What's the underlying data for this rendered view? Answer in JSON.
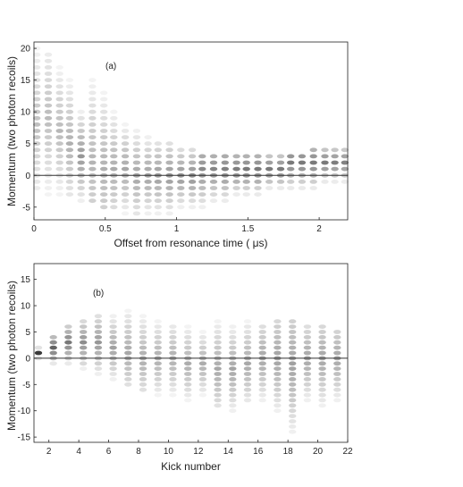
{
  "figure": {
    "colors": {
      "frame": "#222222",
      "zero_line": "#333333",
      "spot": "#2f2f2f",
      "background": "#ffffff"
    }
  },
  "chart_data": [
    {
      "type": "heatmap",
      "panel_label": "(a)",
      "xlabel": "Offset from resonance time ( μs)",
      "ylabel": "Momentum (two photon recoils)",
      "xlim": [
        0,
        2.2
      ],
      "ylim": [
        -7,
        21
      ],
      "xticks": [
        0,
        0.5,
        1,
        1.5,
        2
      ],
      "xtick_labels": [
        "0",
        "0.5",
        "1",
        "1.5",
        "2"
      ],
      "yticks": [
        -5,
        0,
        5,
        10,
        15,
        20
      ],
      "ytick_labels": [
        "-5",
        "0",
        "5",
        "10",
        "15",
        "20"
      ],
      "zero_line": 0,
      "columns": [
        {
          "x": 0.02,
          "ymin": -2,
          "ymax": 20,
          "peak": 8,
          "intensity": 0.3
        },
        {
          "x": 0.1,
          "ymin": -3,
          "ymax": 19,
          "peak": 9,
          "intensity": 0.32
        },
        {
          "x": 0.18,
          "ymin": -3,
          "ymax": 17,
          "peak": 7,
          "intensity": 0.34
        },
        {
          "x": 0.25,
          "ymin": -3,
          "ymax": 15,
          "peak": 5,
          "intensity": 0.38
        },
        {
          "x": 0.33,
          "ymin": -4,
          "ymax": 10,
          "peak": 3,
          "intensity": 0.5
        },
        {
          "x": 0.41,
          "ymin": -4,
          "ymax": 15,
          "peak": 2,
          "intensity": 0.36
        },
        {
          "x": 0.49,
          "ymin": -5,
          "ymax": 13,
          "peak": 1,
          "intensity": 0.38
        },
        {
          "x": 0.56,
          "ymin": -5,
          "ymax": 10,
          "peak": 1,
          "intensity": 0.4
        },
        {
          "x": 0.64,
          "ymin": -6,
          "ymax": 8,
          "peak": 1,
          "intensity": 0.42
        },
        {
          "x": 0.72,
          "ymin": -6,
          "ymax": 7,
          "peak": 0,
          "intensity": 0.44
        },
        {
          "x": 0.8,
          "ymin": -6,
          "ymax": 6,
          "peak": 0,
          "intensity": 0.46
        },
        {
          "x": 0.87,
          "ymin": -6,
          "ymax": 5,
          "peak": 0,
          "intensity": 0.48
        },
        {
          "x": 0.95,
          "ymin": -6,
          "ymax": 5,
          "peak": 0,
          "intensity": 0.5
        },
        {
          "x": 1.03,
          "ymin": -5,
          "ymax": 4,
          "peak": 0,
          "intensity": 0.52
        },
        {
          "x": 1.11,
          "ymin": -5,
          "ymax": 4,
          "peak": 0,
          "intensity": 0.54
        },
        {
          "x": 1.18,
          "ymin": -5,
          "ymax": 3,
          "peak": 1,
          "intensity": 0.56
        },
        {
          "x": 1.26,
          "ymin": -4,
          "ymax": 3,
          "peak": 1,
          "intensity": 0.58
        },
        {
          "x": 1.34,
          "ymin": -4,
          "ymax": 3,
          "peak": 1,
          "intensity": 0.6
        },
        {
          "x": 1.42,
          "ymin": -3,
          "ymax": 3,
          "peak": 1,
          "intensity": 0.62
        },
        {
          "x": 1.49,
          "ymin": -3,
          "ymax": 3,
          "peak": 1,
          "intensity": 0.64
        },
        {
          "x": 1.57,
          "ymin": -3,
          "ymax": 3,
          "peak": 1,
          "intensity": 0.64
        },
        {
          "x": 1.65,
          "ymin": -2,
          "ymax": 3,
          "peak": 1,
          "intensity": 0.64
        },
        {
          "x": 1.73,
          "ymin": -2,
          "ymax": 3,
          "peak": 1,
          "intensity": 0.64
        },
        {
          "x": 1.8,
          "ymin": -2,
          "ymax": 3,
          "peak": 2,
          "intensity": 0.64
        },
        {
          "x": 1.88,
          "ymin": -2,
          "ymax": 3,
          "peak": 2,
          "intensity": 0.64
        },
        {
          "x": 1.96,
          "ymin": -2,
          "ymax": 4,
          "peak": 2,
          "intensity": 0.64
        },
        {
          "x": 2.04,
          "ymin": -1,
          "ymax": 4,
          "peak": 2,
          "intensity": 0.64
        },
        {
          "x": 2.11,
          "ymin": -1,
          "ymax": 4,
          "peak": 2,
          "intensity": 0.62
        },
        {
          "x": 2.18,
          "ymin": -1,
          "ymax": 4,
          "peak": 2,
          "intensity": 0.6
        }
      ]
    },
    {
      "type": "heatmap",
      "panel_label": "(b)",
      "xlabel": "Kick number",
      "ylabel": "Momentum (two photon recoils)",
      "xlim": [
        1,
        22
      ],
      "ylim": [
        -16,
        18
      ],
      "xticks": [
        2,
        4,
        6,
        8,
        10,
        12,
        14,
        16,
        18,
        20,
        22
      ],
      "xtick_labels": [
        "2",
        "4",
        "6",
        "8",
        "10",
        "12",
        "14",
        "16",
        "18",
        "20",
        "22"
      ],
      "yticks": [
        -15,
        -10,
        -5,
        0,
        5,
        10,
        15
      ],
      "ytick_labels": [
        "-15",
        "-10",
        "-5",
        "0",
        "5",
        "10",
        "15"
      ],
      "zero_line": 0,
      "columns": [
        {
          "x": 1.3,
          "ymin": 0,
          "ymax": 2,
          "peak": 1,
          "intensity": 0.95
        },
        {
          "x": 2.3,
          "ymin": -1,
          "ymax": 4,
          "peak": 2,
          "intensity": 0.75
        },
        {
          "x": 3.3,
          "ymin": -1,
          "ymax": 6,
          "peak": 3,
          "intensity": 0.65
        },
        {
          "x": 4.3,
          "ymin": -2,
          "ymax": 7,
          "peak": 3,
          "intensity": 0.55
        },
        {
          "x": 5.3,
          "ymin": -3,
          "ymax": 8,
          "peak": 3,
          "intensity": 0.5
        },
        {
          "x": 6.3,
          "ymin": -4,
          "ymax": 8,
          "peak": 2,
          "intensity": 0.45
        },
        {
          "x": 7.3,
          "ymin": -5,
          "ymax": 9,
          "peak": 1,
          "intensity": 0.42
        },
        {
          "x": 8.3,
          "ymin": -6,
          "ymax": 8,
          "peak": 0,
          "intensity": 0.4
        },
        {
          "x": 9.3,
          "ymin": -7,
          "ymax": 7,
          "peak": 0,
          "intensity": 0.4
        },
        {
          "x": 10.3,
          "ymin": -7,
          "ymax": 6,
          "peak": 0,
          "intensity": 0.4
        },
        {
          "x": 11.3,
          "ymin": -8,
          "ymax": 6,
          "peak": -1,
          "intensity": 0.4
        },
        {
          "x": 12.3,
          "ymin": -7,
          "ymax": 5,
          "peak": -1,
          "intensity": 0.4
        },
        {
          "x": 13.3,
          "ymin": -9,
          "ymax": 7,
          "peak": -2,
          "intensity": 0.42
        },
        {
          "x": 14.3,
          "ymin": -10,
          "ymax": 6,
          "peak": -2,
          "intensity": 0.44
        },
        {
          "x": 15.3,
          "ymin": -8,
          "ymax": 7,
          "peak": -1,
          "intensity": 0.42
        },
        {
          "x": 16.3,
          "ymin": -8,
          "ymax": 6,
          "peak": 0,
          "intensity": 0.44
        },
        {
          "x": 17.3,
          "ymin": -10,
          "ymax": 7,
          "peak": 0,
          "intensity": 0.46
        },
        {
          "x": 18.3,
          "ymin": -14,
          "ymax": 7,
          "peak": -1,
          "intensity": 0.46
        },
        {
          "x": 19.3,
          "ymin": -8,
          "ymax": 6,
          "peak": 0,
          "intensity": 0.44
        },
        {
          "x": 20.3,
          "ymin": -9,
          "ymax": 6,
          "peak": 0,
          "intensity": 0.44
        },
        {
          "x": 21.3,
          "ymin": -8,
          "ymax": 5,
          "peak": 0,
          "intensity": 0.44
        }
      ]
    }
  ]
}
